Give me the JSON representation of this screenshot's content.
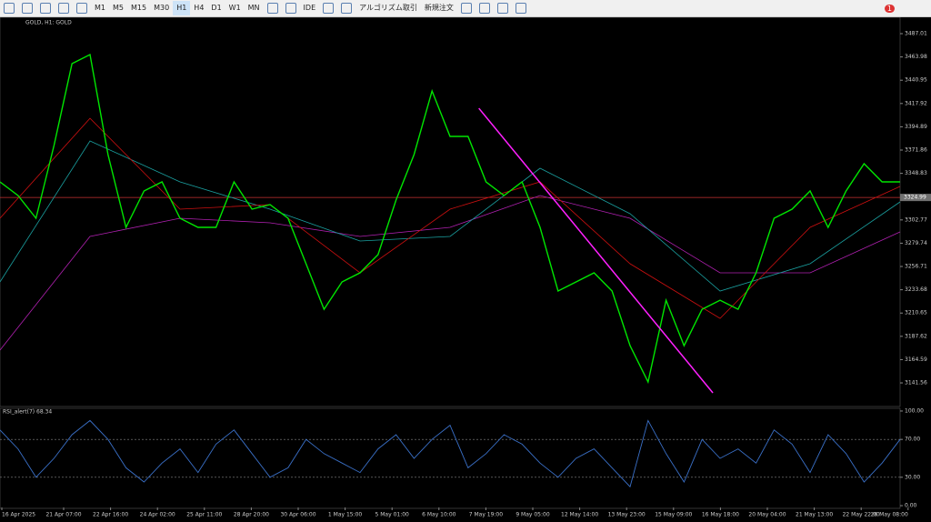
{
  "toolbar": {
    "timeframes": [
      "M1",
      "M5",
      "M15",
      "M30",
      "H1",
      "H4",
      "D1",
      "W1",
      "MN"
    ],
    "active": "H1",
    "ide": "IDE",
    "algo": "アルゴリズム取引",
    "order": "新規注文",
    "badge": "1"
  },
  "chart_data": {
    "type": "candlestick",
    "title": "GOLD, H1: GOLD",
    "series": [
      {
        "name": "GOLD",
        "color": "#00e600",
        "values": [
          3340.4,
          3326.9,
          3304.4,
          3376.4,
          3457.3,
          3466.3,
          3367.4,
          3295.4,
          3331.4,
          3340.4,
          3304.4,
          3295.4,
          3295.4,
          3340.4,
          3313.4,
          3317.9,
          3304.4,
          3259.4,
          3214.4,
          3241.4,
          3250.4,
          3268.4,
          3322.4,
          3367.4,
          3430.3,
          3385.4,
          3385.4,
          3340.4,
          3326.9,
          3340.4,
          3295.4,
          3232.4,
          3241.4,
          3250.4,
          3232.4,
          3178.4,
          3142.5,
          3223.4,
          3178.4,
          3214.4,
          3223.4,
          3214.4,
          3250.4,
          3304.4,
          3313.4,
          3331.4,
          3295.4,
          3331.4,
          3358.4,
          3340.4,
          3340.4
        ]
      },
      {
        "name": "MA fast",
        "color": "#cc1010",
        "values": [
          3304.4,
          3403.3,
          3313.4,
          3317.9,
          3250.4,
          3313.4,
          3340.4,
          3259.4,
          3205.4,
          3295.4,
          3335.9
        ]
      },
      {
        "name": "MA mid",
        "color": "#1aa0a0",
        "values": [
          3241.4,
          3380.9,
          3340.4,
          3313.4,
          3281.9,
          3286.4,
          3353.9,
          3308.9,
          3232.4,
          3259.4,
          3320.6
        ]
      },
      {
        "name": "MA slow",
        "color": "#b020b0",
        "values": [
          3174.0,
          3286.4,
          3304.4,
          3299.9,
          3286.4,
          3295.4,
          3326.9,
          3304.4,
          3250.4,
          3250.4,
          3290.9
        ]
      }
    ],
    "trendline": {
      "color": "#ff20ff",
      "from": [
        26.6,
        3413.2
      ],
      "to": [
        39.6,
        3131.7
      ]
    },
    "current_price": {
      "value": 3324.99,
      "label": "3324.99",
      "color": "#c83232"
    },
    "ylim": [
      3118.2,
      3504.1
    ],
    "yticks": [
      3487.01,
      3463.98,
      3440.95,
      3417.92,
      3394.89,
      3371.86,
      3348.83,
      3302.77,
      3279.74,
      3256.71,
      3233.68,
      3210.65,
      3187.62,
      3164.59,
      3141.56
    ],
    "x_labels": [
      "16 Apr 2025",
      "21 Apr 07:00",
      "22 Apr 16:00",
      "24 Apr 02:00",
      "25 Apr 11:00",
      "28 Apr 20:00",
      "30 Apr 06:00",
      "1 May 15:00",
      "5 May 01:00",
      "6 May 10:00",
      "7 May 19:00",
      "9 May 05:00",
      "12 May 14:00",
      "13 May 23:00",
      "15 May 09:00",
      "16 May 18:00",
      "20 May 04:00",
      "21 May 13:00",
      "22 May 22:00",
      "26 May 08:00"
    ],
    "rsi": {
      "title": "RSI_alert(7) 68.34",
      "color": "#3a70c8",
      "values": [
        80,
        60,
        30,
        50,
        75,
        90,
        70,
        40,
        25,
        45,
        60,
        35,
        65,
        80,
        55,
        30,
        40,
        70,
        55,
        45,
        35,
        60,
        75,
        50,
        70,
        85,
        40,
        55,
        75,
        65,
        45,
        30,
        50,
        60,
        40,
        20,
        90,
        55,
        25,
        70,
        50,
        60,
        45,
        80,
        65,
        35,
        75,
        55,
        25,
        45,
        70
      ],
      "ylim": [
        -1.9,
        103.8
      ],
      "yticks": [
        {
          "value": 100,
          "label": "100.00"
        },
        {
          "value": 70,
          "label": "70.00"
        },
        {
          "value": 30,
          "label": "30.00"
        },
        {
          "value": 0,
          "label": "0.00"
        }
      ],
      "levels": [
        1,
        2
      ]
    }
  }
}
